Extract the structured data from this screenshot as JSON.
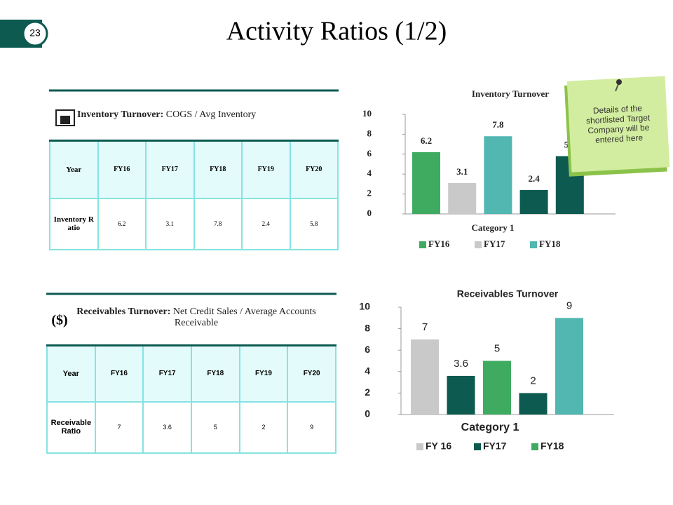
{
  "page_number": "23",
  "title": "Activity Ratios (1/2)",
  "note": "Details of the shortlisted Target Company will be entered here",
  "tables": [
    {
      "caption_bold": "Inventory Turnover:",
      "caption_rest": "COGS / Avg Inventory",
      "header": [
        "Year",
        "FY16",
        "FY17",
        "FY18",
        "FY19",
        "FY20"
      ],
      "rows": [
        [
          "Inventory Ratio",
          "6.2",
          "3.1",
          "7.8",
          "2.4",
          "5.8"
        ]
      ]
    },
    {
      "caption_bold": "Receivables Turnover:",
      "caption_rest": "Net Credit Sales / Average Accounts Receivable",
      "header": [
        "Year",
        "FY16",
        "FY17",
        "FY18",
        "FY19",
        "FY20"
      ],
      "rows": [
        [
          "Receivable Ratio",
          "7",
          "3.6",
          "5",
          "2",
          "9"
        ]
      ]
    }
  ],
  "chart_data": [
    {
      "type": "bar",
      "title": "Inventory Turnover",
      "categories": [
        "Category 1"
      ],
      "ylim": [
        0,
        10
      ],
      "yticks": [
        0,
        2,
        4,
        6,
        8,
        10
      ],
      "series": [
        {
          "name": "FY16",
          "color": "#3fab61",
          "values": [
            6.2
          ]
        },
        {
          "name": "FY17",
          "color": "#c9c9c9",
          "values": [
            3.1
          ]
        },
        {
          "name": "FY18",
          "color": "#52b6b1",
          "values": [
            7.8
          ]
        },
        {
          "name": null,
          "color": "#0c5a50",
          "values": [
            2.4
          ]
        },
        {
          "name": null,
          "color": "#0c5a50",
          "values": [
            5.8
          ]
        }
      ]
    },
    {
      "type": "bar",
      "title": "Receivables Turnover",
      "categories": [
        "Category 1"
      ],
      "ylim": [
        0,
        10
      ],
      "yticks": [
        0,
        2,
        4,
        6,
        8,
        10
      ],
      "series": [
        {
          "name": "FY 16",
          "color": "#c9c9c9",
          "values": [
            7
          ]
        },
        {
          "name": "FY17",
          "color": "#0c5a50",
          "values": [
            3.6
          ]
        },
        {
          "name": "FY18",
          "color": "#3fab61",
          "values": [
            5
          ]
        },
        {
          "name": null,
          "color": "#0c5a50",
          "values": [
            2
          ]
        },
        {
          "name": null,
          "color": "#52b6b1",
          "values": [
            9
          ]
        }
      ]
    }
  ]
}
